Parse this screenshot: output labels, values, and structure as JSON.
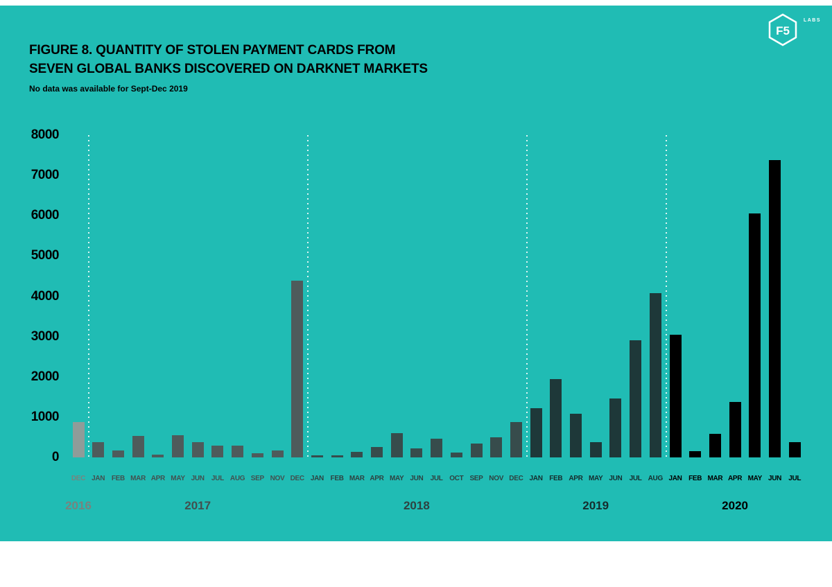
{
  "page": {
    "background_color": "#20bcb4",
    "top_strip_color": "#ffffff",
    "bottom_strip_color": "#ffffff"
  },
  "header": {
    "title_line1": "FIGURE 8. QUANTITY OF STOLEN PAYMENT CARDS FROM",
    "title_line2": "SEVEN GLOBAL BANKS DISCOVERED ON DARKNET MARKETS",
    "subtitle": "No data was available for Sept-Dec 2019",
    "text_color": "#000000"
  },
  "logo": {
    "primary": "F5",
    "secondary": "LABS",
    "color": "#ffffff"
  },
  "chart_data": {
    "type": "bar",
    "title": "Quantity of stolen payment cards from seven global banks discovered on darknet markets",
    "xlabel": "",
    "ylabel": "",
    "ylim": [
      0,
      8000
    ],
    "yticks": [
      8000,
      7000,
      6000,
      5000,
      4000,
      3000,
      2000,
      1000,
      0
    ],
    "grid": "none",
    "legend": "none",
    "separator_color": "#ffffff",
    "groups": [
      {
        "year": "2016",
        "bar_color": "#8f9c99",
        "text_color": "#78837e",
        "months": [
          "DEC"
        ],
        "values": [
          880
        ]
      },
      {
        "year": "2017",
        "bar_color": "#4e5b5b",
        "text_color": "#42504f",
        "months": [
          "JAN",
          "FEB",
          "MAR",
          "APR",
          "MAY",
          "JUN",
          "JUL",
          "AUG",
          "SEP",
          "NOV",
          "DEC"
        ],
        "values": [
          380,
          170,
          540,
          70,
          550,
          380,
          290,
          290,
          100,
          180,
          4380
        ]
      },
      {
        "year": "2018",
        "bar_color": "#374c4c",
        "text_color": "#2e4241",
        "months": [
          "JAN",
          "FEB",
          "MAR",
          "APR",
          "MAY",
          "JUN",
          "JUL",
          "OCT",
          "SEP",
          "NOV",
          "DEC"
        ],
        "values": [
          50,
          60,
          130,
          260,
          600,
          230,
          470,
          120,
          340,
          500,
          870
        ]
      },
      {
        "year": "2019",
        "bar_color": "#1e3839",
        "text_color": "#152d2e",
        "months": [
          "JAN",
          "FEB",
          "APR",
          "MAY",
          "JUN",
          "JUL",
          "AUG"
        ],
        "values": [
          1230,
          1950,
          1090,
          380,
          1460,
          2900,
          4080
        ]
      },
      {
        "year": "2020",
        "bar_color": "#000000",
        "text_color": "#000000",
        "months": [
          "JAN",
          "FEB",
          "MAR",
          "APR",
          "MAY",
          "JUN",
          "JUL"
        ],
        "values": [
          3050,
          150,
          590,
          1380,
          6050,
          7380,
          380
        ]
      }
    ]
  }
}
